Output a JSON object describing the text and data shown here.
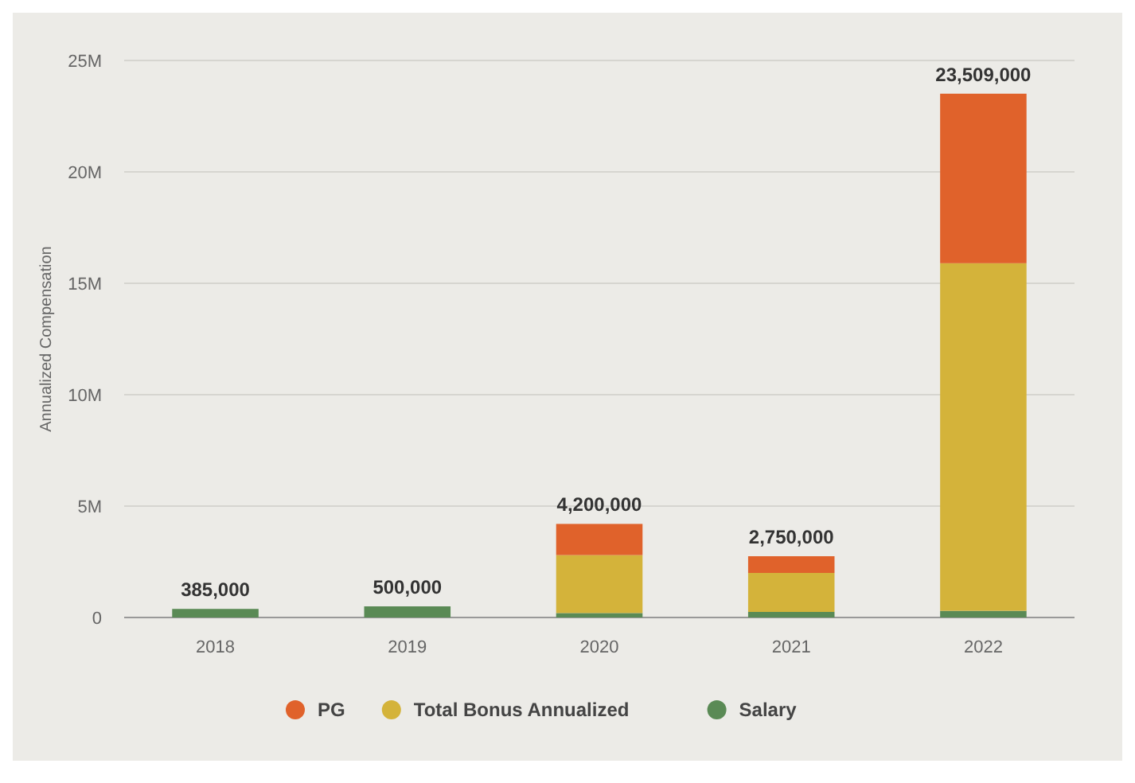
{
  "chart_data": {
    "type": "bar",
    "stacked": true,
    "ylabel": "Annualized Compensation",
    "categories": [
      "2018",
      "2019",
      "2020",
      "2021",
      "2022"
    ],
    "series": [
      {
        "name": "Salary",
        "color": "#5a8a55",
        "values": [
          0.385,
          0.5,
          0.2,
          0.25,
          0.3
        ]
      },
      {
        "name": "Total Bonus Annualized",
        "color": "#d4b33a",
        "values": [
          0,
          0,
          2.6,
          1.75,
          15.6
        ]
      },
      {
        "name": "PG",
        "color": "#e0622b",
        "values": [
          0,
          0,
          1.4,
          0.75,
          7.609
        ]
      }
    ],
    "totals": [
      "385,000",
      "500,000",
      "4,200,000",
      "2,750,000",
      "23,509,000"
    ],
    "ylim": [
      0,
      25
    ],
    "yticks": [
      {
        "value": 0,
        "label": "0"
      },
      {
        "value": 5,
        "label": "5M"
      },
      {
        "value": 10,
        "label": "10M"
      },
      {
        "value": 15,
        "label": "15M"
      },
      {
        "value": 20,
        "label": "20M"
      },
      {
        "value": 25,
        "label": "25M"
      }
    ],
    "grid": "y",
    "legend": "bottom"
  }
}
